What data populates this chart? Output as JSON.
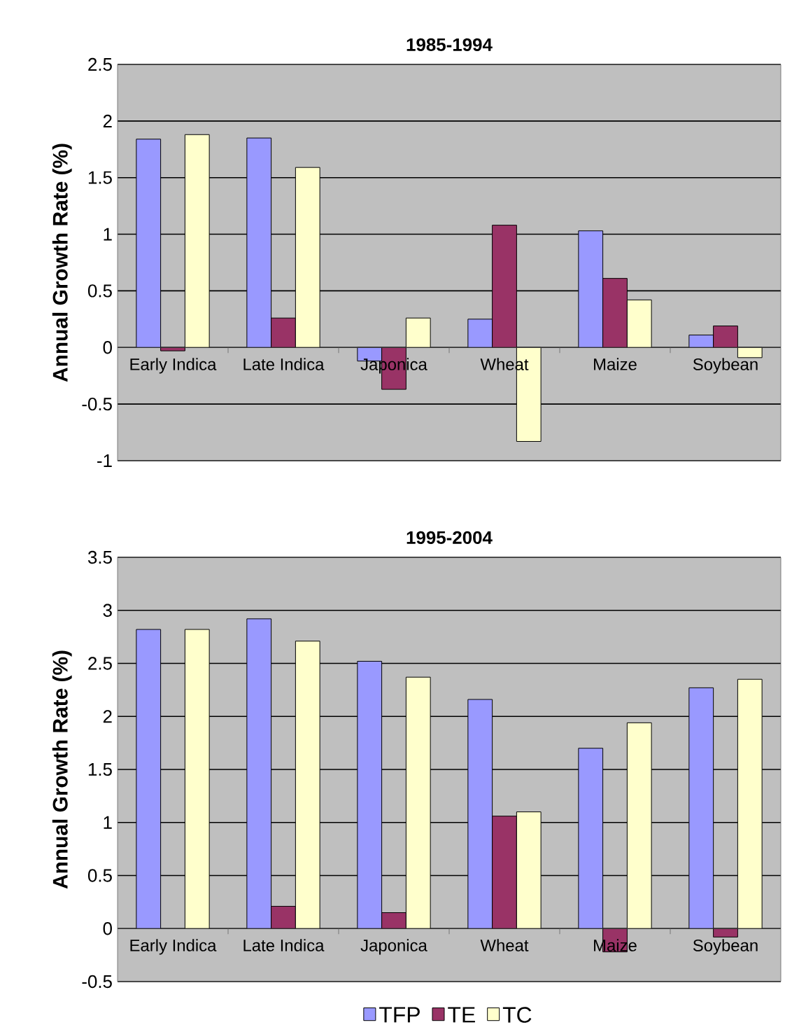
{
  "chart_data": [
    {
      "type": "bar",
      "title": "1985-1994",
      "ylabel": "Annual Growth Rate (%)",
      "categories": [
        "Early Indica",
        "Late Indica",
        "Japonica",
        "Wheat",
        "Maize",
        "Soybean"
      ],
      "series": [
        {
          "color": "#9999ff",
          "values": [
            1.84,
            1.85,
            -0.12,
            0.25,
            1.03,
            0.11
          ]
        },
        {
          "color": "#993366",
          "values": [
            -0.03,
            0.26,
            -0.37,
            1.08,
            0.61,
            0.19
          ]
        },
        {
          "color": "#ffffcc",
          "values": [
            1.88,
            1.59,
            0.26,
            -0.83,
            0.42,
            -0.09
          ]
        }
      ],
      "ylim": [
        -1,
        2.5
      ],
      "yticks": [
        -1,
        -0.5,
        0,
        0.5,
        1,
        1.5,
        2,
        2.5
      ],
      "grid": "y"
    },
    {
      "type": "bar",
      "title": "1995-2004",
      "ylabel": "Annual Growth Rate (%)",
      "categories": [
        "Early Indica",
        "Late Indica",
        "Japonica",
        "Wheat",
        "Maize",
        "Soybean"
      ],
      "series": [
        {
          "name": "TFP",
          "color": "#9999ff",
          "values": [
            2.82,
            2.92,
            2.52,
            2.16,
            1.7,
            2.27
          ]
        },
        {
          "name": "TE",
          "color": "#993366",
          "values": [
            null,
            0.21,
            0.15,
            1.06,
            -0.22,
            -0.08
          ]
        },
        {
          "name": "TC",
          "color": "#ffffcc",
          "values": [
            2.82,
            2.71,
            2.37,
            1.1,
            1.94,
            2.35
          ]
        }
      ],
      "ylim": [
        -0.5,
        3.5
      ],
      "yticks": [
        -0.5,
        0,
        0.5,
        1,
        1.5,
        2,
        2.5,
        3,
        3.5
      ],
      "grid": "y",
      "legend": "bottom"
    }
  ]
}
